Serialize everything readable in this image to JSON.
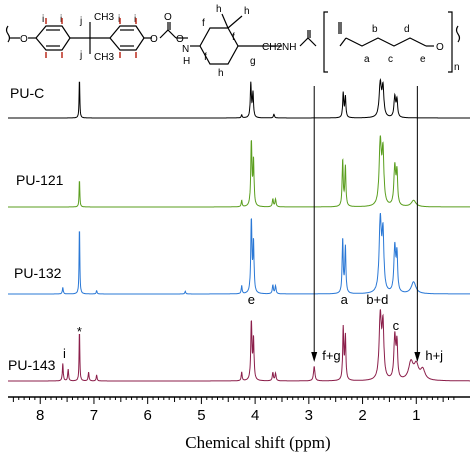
{
  "chart_data": {
    "type": "line",
    "xlabel": "Chemical shift (ppm)",
    "x_reversed": true,
    "xlim": [
      8.6,
      0.0
    ],
    "x_ticks": [
      8,
      7,
      6,
      5,
      4,
      3,
      2,
      1
    ],
    "y_axis_shown": false,
    "colors": {
      "PU-C": "#000000",
      "PU-121": "#5a9e1e",
      "PU-132": "#2a78d6",
      "PU-143": "#8b1e4a",
      "ring_red": "#c0392b"
    },
    "series": [
      {
        "name": "PU-C",
        "peaks": [
          {
            "ppm": 7.27,
            "height": 1.0,
            "width": 0.008
          },
          {
            "ppm": 4.25,
            "height": 0.08,
            "width": 0.01
          },
          {
            "ppm": 4.08,
            "height": 0.9,
            "width": 0.012
          },
          {
            "ppm": 4.04,
            "height": 0.65,
            "width": 0.012
          },
          {
            "ppm": 3.65,
            "height": 0.1,
            "width": 0.012
          },
          {
            "ppm": 2.36,
            "height": 0.65,
            "width": 0.012
          },
          {
            "ppm": 2.32,
            "height": 0.55,
            "width": 0.012
          },
          {
            "ppm": 1.67,
            "height": 0.9,
            "width": 0.025
          },
          {
            "ppm": 1.62,
            "height": 0.75,
            "width": 0.02
          },
          {
            "ppm": 1.4,
            "height": 0.55,
            "width": 0.018
          },
          {
            "ppm": 1.36,
            "height": 0.45,
            "width": 0.015
          }
        ]
      },
      {
        "name": "PU-121",
        "peaks": [
          {
            "ppm": 7.27,
            "height": 0.42,
            "width": 0.008
          },
          {
            "ppm": 4.25,
            "height": 0.1,
            "width": 0.01
          },
          {
            "ppm": 4.07,
            "height": 1.0,
            "width": 0.013
          },
          {
            "ppm": 4.03,
            "height": 0.7,
            "width": 0.012
          },
          {
            "ppm": 3.67,
            "height": 0.12,
            "width": 0.012
          },
          {
            "ppm": 3.62,
            "height": 0.12,
            "width": 0.012
          },
          {
            "ppm": 2.37,
            "height": 0.72,
            "width": 0.012
          },
          {
            "ppm": 2.32,
            "height": 0.62,
            "width": 0.012
          },
          {
            "ppm": 1.67,
            "height": 1.0,
            "width": 0.025
          },
          {
            "ppm": 1.62,
            "height": 0.8,
            "width": 0.02
          },
          {
            "ppm": 1.4,
            "height": 0.62,
            "width": 0.02
          },
          {
            "ppm": 1.36,
            "height": 0.5,
            "width": 0.015
          },
          {
            "ppm": 1.05,
            "height": 0.1,
            "width": 0.05
          }
        ]
      },
      {
        "name": "PU-132",
        "peaks": [
          {
            "ppm": 7.58,
            "height": 0.1,
            "width": 0.01
          },
          {
            "ppm": 7.27,
            "height": 1.0,
            "width": 0.008
          },
          {
            "ppm": 6.95,
            "height": 0.05,
            "width": 0.01
          },
          {
            "ppm": 5.3,
            "height": 0.04,
            "width": 0.01
          },
          {
            "ppm": 4.25,
            "height": 0.12,
            "width": 0.01
          },
          {
            "ppm": 4.07,
            "height": 1.1,
            "width": 0.013
          },
          {
            "ppm": 4.03,
            "height": 0.75,
            "width": 0.012
          },
          {
            "ppm": 3.67,
            "height": 0.13,
            "width": 0.012
          },
          {
            "ppm": 3.62,
            "height": 0.12,
            "width": 0.012
          },
          {
            "ppm": 2.37,
            "height": 0.82,
            "width": 0.012
          },
          {
            "ppm": 2.32,
            "height": 0.7,
            "width": 0.012
          },
          {
            "ppm": 1.67,
            "height": 1.1,
            "width": 0.025
          },
          {
            "ppm": 1.62,
            "height": 0.85,
            "width": 0.02
          },
          {
            "ppm": 1.4,
            "height": 0.7,
            "width": 0.02
          },
          {
            "ppm": 1.36,
            "height": 0.55,
            "width": 0.015
          },
          {
            "ppm": 1.05,
            "height": 0.18,
            "width": 0.05
          }
        ]
      },
      {
        "name": "PU-143",
        "peaks": [
          {
            "ppm": 7.58,
            "height": 0.3,
            "width": 0.01
          },
          {
            "ppm": 7.48,
            "height": 0.2,
            "width": 0.01
          },
          {
            "ppm": 7.27,
            "height": 0.85,
            "width": 0.008
          },
          {
            "ppm": 7.1,
            "height": 0.15,
            "width": 0.01
          },
          {
            "ppm": 6.95,
            "height": 0.1,
            "width": 0.01
          },
          {
            "ppm": 4.25,
            "height": 0.15,
            "width": 0.01
          },
          {
            "ppm": 4.07,
            "height": 1.0,
            "width": 0.013
          },
          {
            "ppm": 4.03,
            "height": 0.7,
            "width": 0.012
          },
          {
            "ppm": 3.67,
            "height": 0.14,
            "width": 0.012
          },
          {
            "ppm": 3.62,
            "height": 0.13,
            "width": 0.012
          },
          {
            "ppm": 2.9,
            "height": 0.25,
            "width": 0.015
          },
          {
            "ppm": 2.36,
            "height": 0.9,
            "width": 0.012
          },
          {
            "ppm": 2.32,
            "height": 0.75,
            "width": 0.012
          },
          {
            "ppm": 1.67,
            "height": 1.1,
            "width": 0.025
          },
          {
            "ppm": 1.62,
            "height": 0.9,
            "width": 0.02
          },
          {
            "ppm": 1.4,
            "height": 0.75,
            "width": 0.02
          },
          {
            "ppm": 1.36,
            "height": 0.6,
            "width": 0.015
          },
          {
            "ppm": 1.1,
            "height": 0.3,
            "width": 0.05
          },
          {
            "ppm": 1.0,
            "height": 0.25,
            "width": 0.05
          },
          {
            "ppm": 0.88,
            "height": 0.18,
            "width": 0.05
          }
        ]
      }
    ],
    "annotations": [
      {
        "text": "*",
        "ppm": 7.27
      },
      {
        "text": "i",
        "ppm": 7.55
      },
      {
        "text": "e",
        "ppm": 4.07
      },
      {
        "text": "a",
        "ppm": 2.34
      },
      {
        "text": "b+d",
        "ppm": 1.65
      },
      {
        "text": "c",
        "ppm": 1.38
      },
      {
        "text": "f+g",
        "ppm": 2.9
      },
      {
        "text": "h+j",
        "ppm": 0.98
      }
    ],
    "guide_lines_ppm": [
      2.9,
      0.98
    ],
    "structure_labels": [
      "i",
      "i",
      "i",
      "i",
      "j",
      "j",
      "h",
      "h",
      "h",
      "f",
      "f",
      "f",
      "g",
      "a",
      "b",
      "c",
      "d",
      "e",
      "n"
    ],
    "structure_groups": [
      "CH3",
      "CH3",
      "CH2NH",
      "N",
      "H",
      "O",
      "O",
      "O",
      "O",
      "O"
    ]
  }
}
